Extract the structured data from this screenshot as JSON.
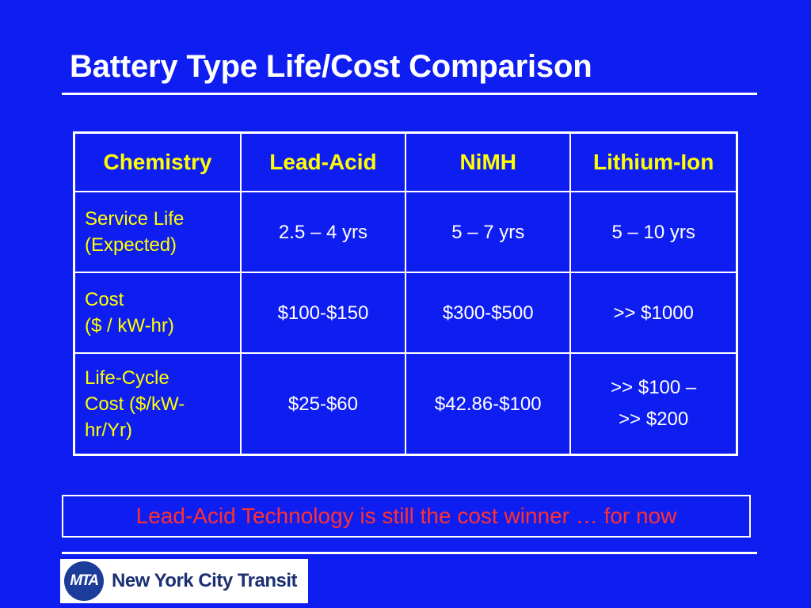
{
  "slide": {
    "title": "Battery Type Life/Cost Comparison"
  },
  "table": {
    "headers": [
      "Chemistry",
      "Lead-Acid",
      "NiMH",
      "Lithium-Ion"
    ],
    "rows": [
      {
        "label_lines": [
          "Service Life",
          "(Expected)"
        ],
        "cells": [
          [
            "2.5 – 4 yrs"
          ],
          [
            "5 – 7 yrs"
          ],
          [
            "5 – 10 yrs"
          ]
        ]
      },
      {
        "label_lines": [
          "Cost",
          "($ / kW-hr)"
        ],
        "cells": [
          [
            "$100-$150"
          ],
          [
            "$300-$500"
          ],
          [
            ">> $1000"
          ]
        ]
      },
      {
        "label_lines": [
          "Life-Cycle",
          "Cost ($/kW-",
          "hr/Yr)"
        ],
        "cells": [
          [
            "$25-$60"
          ],
          [
            "$42.86-$100"
          ],
          [
            ">> $100 –",
            ">> $200"
          ]
        ]
      }
    ]
  },
  "callout": {
    "text": "Lead-Acid Technology is still the cost winner … for now"
  },
  "logo": {
    "badge": "MTA",
    "text": "New York City Transit"
  },
  "colors": {
    "background": "#0f1ef0",
    "header_text": "#ffff00",
    "callout_text": "#ff3030"
  }
}
